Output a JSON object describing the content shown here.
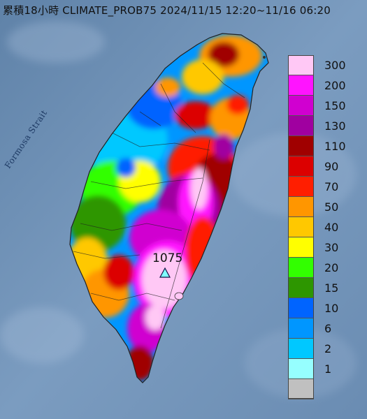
{
  "title": "累積18小時 CLIMATE_PROB75 2024/11/15 12:20~11/16 06:20",
  "sea_label": "Formosa Strait",
  "max_value": "1075",
  "legend": [
    {
      "label": "300",
      "color": "#ffc8f5"
    },
    {
      "label": "200",
      "color": "#ff14ff"
    },
    {
      "label": "150",
      "color": "#d000d0"
    },
    {
      "label": "130",
      "color": "#a000a0"
    },
    {
      "label": "110",
      "color": "#a00000"
    },
    {
      "label": "90",
      "color": "#dc0000"
    },
    {
      "label": "70",
      "color": "#ff1e00"
    },
    {
      "label": "50",
      "color": "#ff9600"
    },
    {
      "label": "40",
      "color": "#ffc800"
    },
    {
      "label": "30",
      "color": "#ffff00"
    },
    {
      "label": "20",
      "color": "#32ff00"
    },
    {
      "label": "15",
      "color": "#2d9600"
    },
    {
      "label": "10",
      "color": "#0064ff"
    },
    {
      "label": "6",
      "color": "#0096ff"
    },
    {
      "label": "2",
      "color": "#00c8ff"
    },
    {
      "label": "1",
      "color": "#96ffff"
    },
    {
      "label": "",
      "color": "#c0c0c0"
    }
  ]
}
